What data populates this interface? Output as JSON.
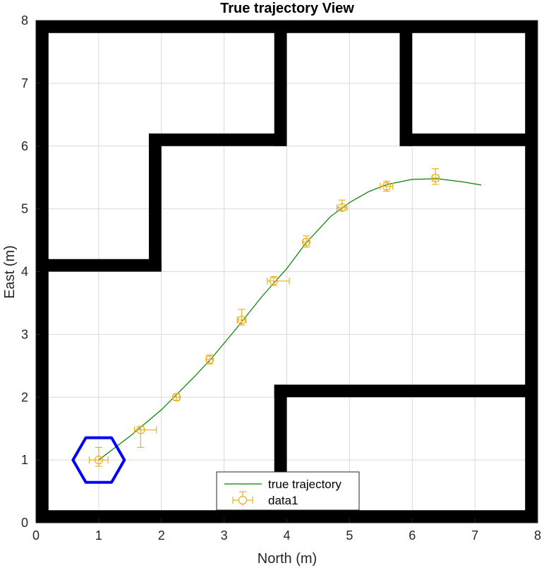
{
  "chart_data": {
    "type": "line",
    "title": "True trajectory View",
    "xlabel": "North (m)",
    "ylabel": "East (m)",
    "xlim": [
      0,
      8
    ],
    "ylim": [
      0,
      8
    ],
    "xticks": [
      "0",
      "1",
      "2",
      "3",
      "4",
      "5",
      "6",
      "7",
      "8"
    ],
    "yticks": [
      "0",
      "1",
      "2",
      "3",
      "4",
      "5",
      "6",
      "7",
      "8"
    ],
    "grid": true,
    "legend_position": "bottom-center",
    "walls": [
      [
        [
          0,
          8
        ],
        [
          0.2,
          8
        ]
      ],
      [
        [
          0,
          7.8
        ],
        [
          8,
          8
        ]
      ],
      [
        [
          7.8,
          0
        ],
        [
          8,
          8
        ]
      ],
      [
        [
          0,
          0
        ],
        [
          8,
          0.2
        ]
      ],
      [
        [
          0,
          0
        ],
        [
          0.2,
          8
        ]
      ],
      [
        [
          0,
          4
        ],
        [
          2,
          4.2
        ]
      ],
      [
        [
          1.8,
          4
        ],
        [
          2,
          6.2
        ]
      ],
      [
        [
          1.8,
          6
        ],
        [
          4,
          6.2
        ]
      ],
      [
        [
          3.8,
          6
        ],
        [
          4,
          8
        ]
      ],
      [
        [
          5.8,
          6
        ],
        [
          6,
          8
        ]
      ],
      [
        [
          5.8,
          6
        ],
        [
          8,
          6.2
        ]
      ],
      [
        [
          3.8,
          0.2
        ],
        [
          4,
          2.2
        ]
      ],
      [
        [
          3.8,
          2
        ],
        [
          8,
          2.2
        ]
      ]
    ],
    "robot": {
      "x": 1.0,
      "y": 1.0,
      "radius": 0.41
    },
    "series": [
      {
        "name": "true trajectory",
        "color": "#008000",
        "x": [
          1.0,
          1.5,
          2.0,
          2.5,
          2.8,
          3.2,
          3.6,
          4.0,
          4.3,
          4.7,
          5.0,
          5.3,
          5.6,
          6.0,
          6.4,
          6.8,
          7.1
        ],
        "y": [
          1.0,
          1.38,
          1.8,
          2.3,
          2.62,
          3.1,
          3.6,
          4.05,
          4.45,
          4.88,
          5.1,
          5.27,
          5.39,
          5.47,
          5.48,
          5.43,
          5.38
        ]
      },
      {
        "name": "data1",
        "color": "#EDB120",
        "x": [
          1.0,
          1.67,
          2.24,
          2.77,
          3.28,
          3.79,
          4.31,
          4.88,
          5.59,
          6.37
        ],
        "y": [
          1.0,
          1.48,
          2.0,
          2.6,
          3.23,
          3.85,
          4.47,
          5.02,
          5.36,
          5.49
        ],
        "xerr": [
          [
            0.15,
            0.15
          ],
          [
            0.1,
            0.25
          ],
          [
            0.05,
            0.05
          ],
          [
            0.05,
            0.05
          ],
          [
            0.07,
            0.07
          ],
          [
            0.1,
            0.25
          ],
          [
            0.05,
            0.05
          ],
          [
            0.08,
            0.08
          ],
          [
            0.1,
            0.1
          ],
          [
            0.05,
            0.05
          ]
        ],
        "yerr": [
          [
            0.1,
            0.2
          ],
          [
            0.28,
            0.05
          ],
          [
            0.05,
            0.05
          ],
          [
            0.07,
            0.07
          ],
          [
            0.08,
            0.17
          ],
          [
            0.07,
            0.07
          ],
          [
            0.08,
            0.1
          ],
          [
            0.05,
            0.12
          ],
          [
            0.08,
            0.08
          ],
          [
            0.1,
            0.15
          ]
        ]
      }
    ]
  },
  "colors": {
    "wall": "#000000",
    "robot": "#0000FF",
    "grid": "#D9D9D9",
    "axes": "#262626"
  }
}
